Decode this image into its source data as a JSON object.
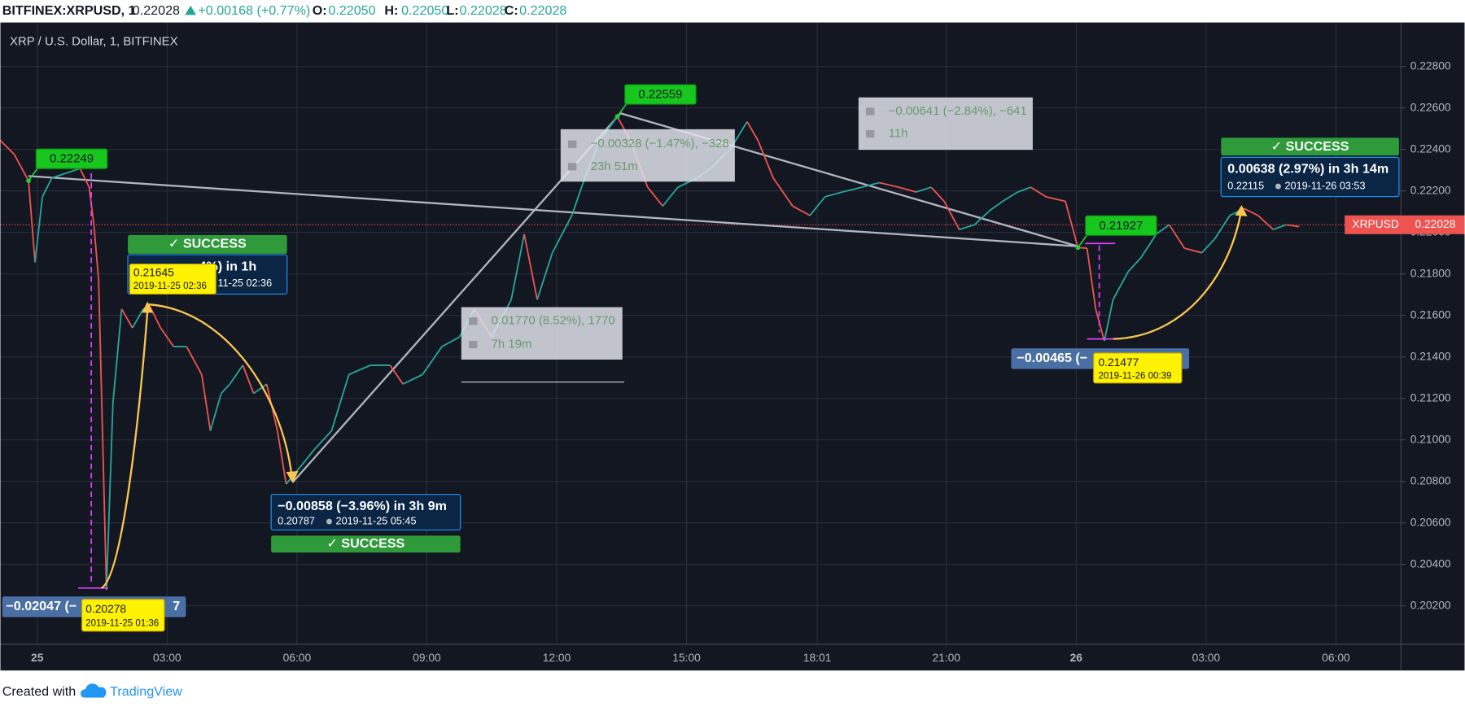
{
  "header": {
    "symbol": "BITFINEX:XRPUSD, 1",
    "last": "0.22028",
    "change": "+0.00168 (+0.77%)",
    "ohlc": [
      {
        "key": "O:",
        "value": "0.22050"
      },
      {
        "key": "H:",
        "value": "0.22050"
      },
      {
        "key": "L:",
        "value": "0.22028"
      },
      {
        "key": "C:",
        "value": "0.22028"
      }
    ]
  },
  "chart_data": {
    "type": "line",
    "title": "XRP / U.S. Dollar, 1, BITFINEX",
    "x": [
      -0.85,
      -0.53,
      -0.2,
      -0.05,
      0.12,
      0.34,
      0.66,
      0.99,
      1.2,
      1.31,
      1.42,
      1.6,
      1.75,
      1.95,
      2.2,
      2.45,
      2.6,
      2.85,
      3.15,
      3.45,
      3.8,
      4.0,
      4.25,
      4.45,
      4.75,
      5.0,
      5.3,
      5.55,
      5.75,
      6.05,
      6.4,
      6.8,
      7.2,
      7.7,
      8.15,
      8.45,
      8.9,
      9.35,
      9.75,
      10.1,
      10.5,
      10.95,
      11.25,
      11.55,
      11.9,
      12.35,
      12.65,
      13.0,
      13.4,
      13.7,
      14.1,
      14.45,
      14.8,
      15.25,
      15.55,
      16.0,
      16.4,
      16.65,
      17.0,
      17.45,
      17.85,
      18.2,
      18.6,
      19.05,
      19.45,
      19.9,
      20.3,
      20.65,
      20.95,
      21.3,
      21.65,
      22.0,
      22.3,
      22.65,
      22.95,
      23.3,
      23.75,
      24.04,
      24.25,
      24.45,
      24.65,
      24.85,
      25.2,
      25.5,
      25.85,
      26.15,
      26.5,
      26.9,
      27.2,
      27.55,
      27.88,
      28.2,
      28.55,
      28.85,
      29.15
    ],
    "series": [
      {
        "name": "XRPUSD",
        "up_color": "#26a69a",
        "down_color": "#ef5350",
        "values": [
          0.22443,
          0.22376,
          0.22249,
          0.21856,
          0.22172,
          0.22263,
          0.22285,
          0.22308,
          0.22218,
          0.22037,
          0.21766,
          0.20278,
          0.21179,
          0.21631,
          0.2154,
          0.21631,
          0.21645,
          0.2154,
          0.2145,
          0.2145,
          0.21315,
          0.21044,
          0.21224,
          0.21269,
          0.2136,
          0.21224,
          0.21269,
          0.21044,
          0.20787,
          0.20863,
          0.20953,
          0.21044,
          0.21315,
          0.2136,
          0.2136,
          0.21269,
          0.21315,
          0.2145,
          0.21495,
          0.21631,
          0.21495,
          0.21676,
          0.21992,
          0.21676,
          0.21902,
          0.22082,
          0.22263,
          0.22443,
          0.22559,
          0.22443,
          0.22218,
          0.22127,
          0.22218,
          0.22263,
          0.22308,
          0.22398,
          0.22534,
          0.22443,
          0.22263,
          0.22127,
          0.22082,
          0.22172,
          0.22195,
          0.22218,
          0.2224,
          0.22218,
          0.22195,
          0.22218,
          0.2215,
          0.22014,
          0.22037,
          0.22105,
          0.2215,
          0.22195,
          0.22218,
          0.22172,
          0.2215,
          0.21927,
          0.21924,
          0.21631,
          0.21477,
          0.21676,
          0.21811,
          0.21879,
          0.21992,
          0.22037,
          0.21924,
          0.21902,
          0.21969,
          0.22082,
          0.22115,
          0.22082,
          0.22014,
          0.22037,
          0.22028
        ]
      }
    ],
    "xlim": [
      -0.85,
      31.5
    ],
    "xticks": [
      {
        "value": 0,
        "label": "25"
      },
      {
        "value": 3,
        "label": "03:00"
      },
      {
        "value": 6,
        "label": "06:00"
      },
      {
        "value": 9,
        "label": "09:00"
      },
      {
        "value": 12,
        "label": "12:00"
      },
      {
        "value": 15,
        "label": "15:00"
      },
      {
        "value": 18.017,
        "label": "18:01"
      },
      {
        "value": 21,
        "label": "21:00"
      },
      {
        "value": 24,
        "label": "26"
      },
      {
        "value": 27,
        "label": "03:00"
      },
      {
        "value": 30,
        "label": "06:00"
      }
    ],
    "ylim": [
      0.20015,
      0.22994
    ],
    "yticks": [
      {
        "value": 0.202,
        "label": "0.20200"
      },
      {
        "value": 0.204,
        "label": "0.20400"
      },
      {
        "value": 0.206,
        "label": "0.20600"
      },
      {
        "value": 0.208,
        "label": "0.20800"
      },
      {
        "value": 0.21,
        "label": "0.21000"
      },
      {
        "value": 0.212,
        "label": "0.21200"
      },
      {
        "value": 0.214,
        "label": "0.21400"
      },
      {
        "value": 0.216,
        "label": "0.21600"
      },
      {
        "value": 0.218,
        "label": "0.21800"
      },
      {
        "value": 0.22,
        "label": "0.22000"
      },
      {
        "value": 0.222,
        "label": "0.22200"
      },
      {
        "value": 0.224,
        "label": "0.22400"
      },
      {
        "value": 0.226,
        "label": "0.22600"
      },
      {
        "value": 0.228,
        "label": "0.22800"
      }
    ],
    "grid": true,
    "flags": [
      {
        "x": -0.2,
        "value": 0.22249,
        "label": "0.22249"
      },
      {
        "x": 13.4,
        "value": 0.22559,
        "label": "0.22559"
      },
      {
        "x": 24.04,
        "value": 0.21927,
        "label": "0.21927"
      }
    ],
    "notes": [
      [
        "−0.00328 (−1.47%), −328",
        "23h 51m"
      ],
      [
        "−0.00641 (−2.84%), −641",
        "11h"
      ],
      [
        "0.01770 (8.52%), 1770",
        "7h 19m"
      ]
    ],
    "forecasts": [
      {
        "status": "✓ SUCCESS",
        "change": "4%) in 1h",
        "date": "11-25  02:36"
      },
      {
        "status": "✓ SUCCESS",
        "change": "−0.00858 (−3.96%) in 3h 9m",
        "price": "0.20787",
        "date": "2019-11-25  05:45"
      },
      {
        "status": "✓ SUCCESS",
        "change": "0.00638 (2.97%) in 3h 14m",
        "price": "0.22115",
        "date": "2019-11-26  03:53"
      }
    ],
    "failed": [
      [
        "−0.02047 (−",
        "7"
      ],
      [
        "−0.00465 (−"
      ]
    ],
    "price_labels": [
      {
        "price": "0.20278",
        "date": "2019-11-25 01:36"
      },
      {
        "price": "0.21645",
        "date": "2019-11-25 02:36"
      },
      {
        "price": "0.21477",
        "date": "2019-11-26 00:39"
      }
    ],
    "price_tag": {
      "name": "XRPUSD",
      "value": "0.22028"
    }
  },
  "footer": {
    "created": "Created with",
    "brand": "TradingView"
  }
}
